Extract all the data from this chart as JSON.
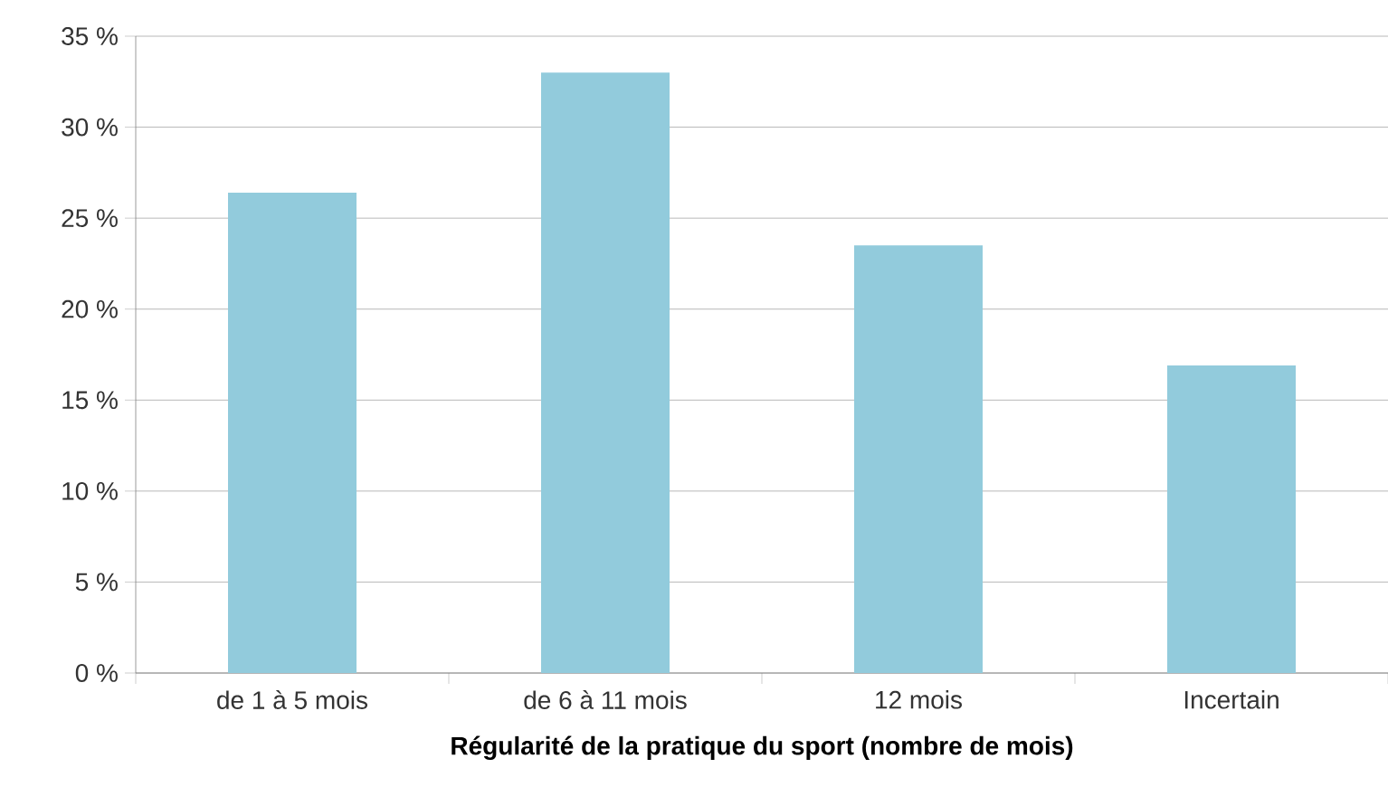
{
  "chart_data": {
    "type": "bar",
    "xlabel": "**Régularité de la pratique du sport (nombre de mois)**",
    "categories": [
      "de 1 à 5 mois",
      "de 6 à 11 mois",
      "12 mois",
      "Incertain"
    ],
    "values": [
      26.4,
      33.0,
      23.5,
      16.9
    ],
    "color": "#92cbdc",
    "ylim": [
      0,
      35
    ],
    "yticks": [
      {
        "value": 0,
        "label": "0 %"
      },
      {
        "value": 5,
        "label": "5 %"
      },
      {
        "value": 10,
        "label": "10 %"
      },
      {
        "value": 15,
        "label": "15 %"
      },
      {
        "value": 20,
        "label": "20 %"
      },
      {
        "value": 25,
        "label": "25 %"
      },
      {
        "value": 30,
        "label": "30 %"
      },
      {
        "value": 35,
        "label": "35 %"
      }
    ],
    "grid": "y"
  }
}
